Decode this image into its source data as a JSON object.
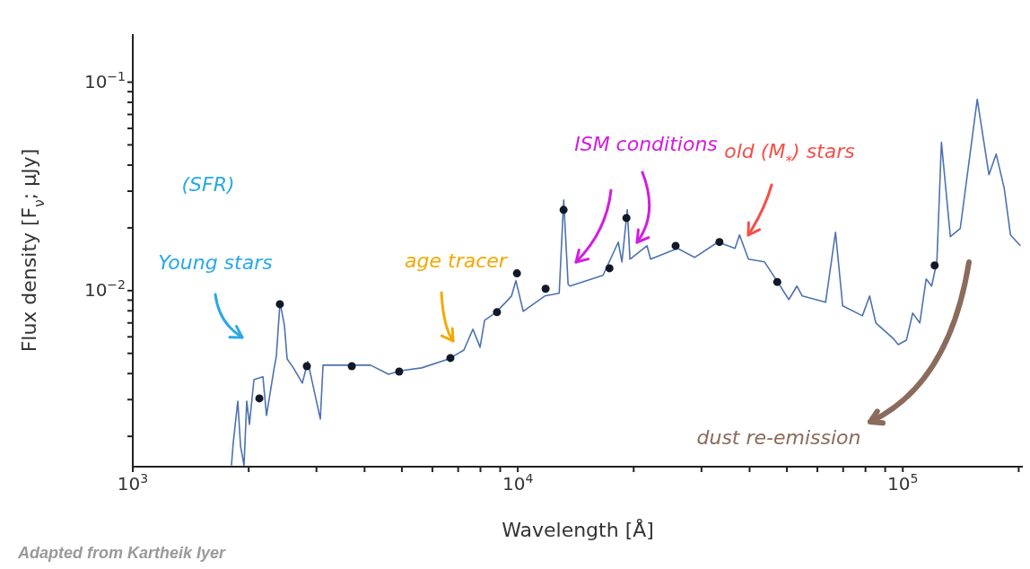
{
  "chart_data": {
    "type": "line",
    "xlabel": "Wavelength [Å]",
    "ylabel": "Flux density [F$_{ν}$; μJy]",
    "log": "xy",
    "xlim": [
      1000,
      205000
    ],
    "ylim": [
      0.00143,
      0.17
    ],
    "xticks": [
      {
        "value": 1000,
        "label": "10$^{3}$"
      },
      {
        "value": 2000,
        "label": null
      },
      {
        "value": 3000,
        "label": null
      },
      {
        "value": 4000,
        "label": null
      },
      {
        "value": 5000,
        "label": null
      },
      {
        "value": 6000,
        "label": null
      },
      {
        "value": 7000,
        "label": null
      },
      {
        "value": 8000,
        "label": null
      },
      {
        "value": 9000,
        "label": null
      },
      {
        "value": 10000,
        "label": "10$^{4}$"
      },
      {
        "value": 20000,
        "label": null
      },
      {
        "value": 30000,
        "label": null
      },
      {
        "value": 40000,
        "label": null
      },
      {
        "value": 50000,
        "label": null
      },
      {
        "value": 60000,
        "label": null
      },
      {
        "value": 70000,
        "label": null
      },
      {
        "value": 80000,
        "label": null
      },
      {
        "value": 90000,
        "label": null
      },
      {
        "value": 100000,
        "label": "10$^{5}$"
      },
      {
        "value": 200000,
        "label": null
      }
    ],
    "yticks": [
      {
        "value": 0.002,
        "label": null
      },
      {
        "value": 0.003,
        "label": null
      },
      {
        "value": 0.004,
        "label": null
      },
      {
        "value": 0.005,
        "label": null
      },
      {
        "value": 0.006,
        "label": null
      },
      {
        "value": 0.007,
        "label": null
      },
      {
        "value": 0.008,
        "label": null
      },
      {
        "value": 0.009,
        "label": null
      },
      {
        "value": 0.01,
        "label": "10$^{−2}$"
      },
      {
        "value": 0.02,
        "label": null
      },
      {
        "value": 0.03,
        "label": null
      },
      {
        "value": 0.04,
        "label": null
      },
      {
        "value": 0.05,
        "label": null
      },
      {
        "value": 0.06,
        "label": null
      },
      {
        "value": 0.07,
        "label": null
      },
      {
        "value": 0.08,
        "label": null
      },
      {
        "value": 0.09,
        "label": null
      },
      {
        "value": 0.1,
        "label": "10$^{−1}$"
      }
    ],
    "series": [
      {
        "color": "#4c72b0",
        "x": [
          1804,
          1824,
          1874,
          1905,
          1945,
          1977,
          2009,
          2064,
          2178,
          2225,
          2323,
          2360,
          2412,
          2477,
          2517,
          2613,
          2757,
          2848,
          3070,
          3120,
          3345,
          3725,
          4147,
          4616,
          4977,
          5630,
          6614,
          7246,
          7645,
          7982,
          8200,
          8794,
          9632,
          9890,
          10330,
          11750,
          12810,
          13160,
          13510,
          13660,
          16650,
          18240,
          18640,
          19250,
          19560,
          21660,
          22130,
          26000,
          28790,
          33110,
          36660,
          37660,
          39730,
          43750,
          47420,
          50580,
          53090,
          54830,
          63030,
          66870,
          69800,
          78550,
          82000,
          85110,
          94280,
          97340,
          102200,
          106100,
          110700,
          115000,
          118800,
          122600,
          126000,
          132900,
          141000,
          156100,
          167400,
          174800,
          183400,
          190400,
          202000
        ],
        "values": [
          0.00145,
          0.00187,
          0.00295,
          0.0018,
          0.00145,
          0.00295,
          0.00228,
          0.00374,
          0.00386,
          0.00252,
          0.00413,
          0.00485,
          0.00879,
          0.00679,
          0.0047,
          0.00426,
          0.0036,
          0.00457,
          0.00242,
          0.00439,
          0.00439,
          0.00439,
          0.00439,
          0.00397,
          0.00413,
          0.00426,
          0.0047,
          0.00519,
          0.00653,
          0.00535,
          0.00721,
          0.00788,
          0.00942,
          0.01115,
          0.00796,
          0.00942,
          0.00971,
          0.0272,
          0.01072,
          0.01051,
          0.01184,
          0.01709,
          0.01373,
          0.02443,
          0.01415,
          0.01642,
          0.01415,
          0.01594,
          0.01443,
          0.01709,
          0.01594,
          0.0185,
          0.01415,
          0.01373,
          0.01093,
          0.00906,
          0.01051,
          0.00942,
          0.00879,
          0.01906,
          0.00845,
          0.00757,
          0.00942,
          0.007,
          0.00591,
          0.00551,
          0.00579,
          0.0078,
          0.007,
          0.01138,
          0.01051,
          0.01373,
          0.05143,
          0.01814,
          0.01983,
          0.08282,
          0.03597,
          0.04519,
          0.031,
          0.0185,
          0.01642
        ]
      },
      {
        "type": "scatter",
        "color": "#111827",
        "marker": "circle",
        "x": [
          2132,
          2410,
          2832,
          3705,
          4920,
          6683,
          8830,
          9950,
          11810,
          13150,
          17300,
          19150,
          25700,
          33400,
          47200,
          121000
        ],
        "values": [
          0.00304,
          0.00861,
          0.00434,
          0.00434,
          0.00409,
          0.00475,
          0.00788,
          0.0121,
          0.0102,
          0.0244,
          0.0128,
          0.0223,
          0.0164,
          0.0171,
          0.011,
          0.0132
        ]
      }
    ],
    "annotations": [
      "(SFR)",
      "Young stars",
      "age tracer",
      "ISM conditions",
      "old (M$_{*}$) stars",
      "dust re-emission",
      "Adapted from Kartheik Iyer"
    ]
  }
}
